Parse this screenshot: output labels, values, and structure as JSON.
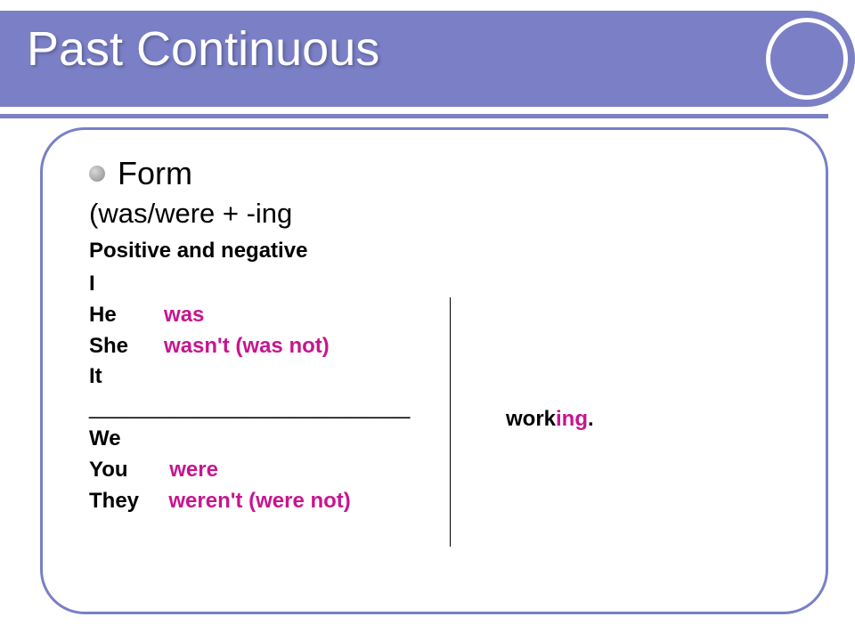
{
  "title": "Past Continuous",
  "colors": {
    "accent": "#7a7fc6",
    "text": "#000000",
    "highlight": "#c7158f",
    "background": "#ffffff"
  },
  "content": {
    "bullet_label": "Form",
    "formula": "(was/were + -ing",
    "subheading": "Positive and negative",
    "group1": {
      "p1": "I",
      "p2_pre": "He        ",
      "p2_verb": "was",
      "p3_pre": "She      ",
      "p3_verb": "wasn't (was not)",
      "p4": "It"
    },
    "divider": "___________________________",
    "group2": {
      "p1": "We",
      "p2_pre": "You       ",
      "p2_verb": "were",
      "p3_pre": "They     ",
      "p3_verb": "weren't (were not)"
    },
    "verb_stem": "work",
    "verb_suffix": "ing",
    "verb_punct": "."
  }
}
